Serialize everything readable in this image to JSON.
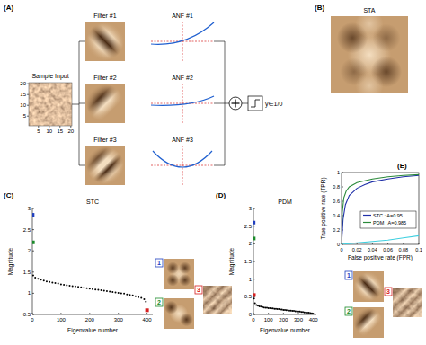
{
  "panels": {
    "A": {
      "label": "(A)",
      "sample_input": {
        "title": "Sample Input",
        "xlim": [
          0.5,
          20.5
        ],
        "ylim": [
          0.5,
          20.5
        ],
        "xticks": [
          5,
          10,
          15,
          20
        ],
        "yticks": [
          5,
          10,
          15,
          20
        ]
      },
      "filters": [
        "Filter #1",
        "Filter #2",
        "Filter #3"
      ],
      "nonlinearities": [
        "ANF #1",
        "ANF #2",
        "ANF #3"
      ],
      "output": "y∈1/0"
    },
    "B": {
      "label": "(B)",
      "title": "STA"
    },
    "C": {
      "label": "(C)",
      "thumbnails": [
        {
          "number": "1",
          "color": "#1f3fbf"
        },
        {
          "number": "2",
          "color": "#1a8a2a"
        },
        {
          "number": "3",
          "color": "#d62020"
        }
      ]
    },
    "D": {
      "label": "(D)",
      "thumbnails": [
        {
          "number": "1",
          "color": "#1f3fbf"
        },
        {
          "number": "2",
          "color": "#1a8a2a"
        },
        {
          "number": "3",
          "color": "#d62020"
        }
      ]
    },
    "E": {
      "label": "(E)"
    }
  },
  "chart_data": [
    {
      "type": "scatter",
      "title": "STC",
      "x_label": "Eigenvalue number",
      "y_label": "Magnitude",
      "xlim": [
        0,
        420
      ],
      "xticks": [
        0,
        100,
        200,
        300,
        400
      ],
      "ylim": [
        0.5,
        3
      ],
      "yticks": [
        0.5,
        1,
        1.5,
        2,
        2.5,
        3
      ],
      "series": [
        {
          "color": "#000000",
          "marker": "dot",
          "x": [
            3,
            10,
            20,
            30,
            40,
            50,
            60,
            70,
            80,
            90,
            100,
            110,
            120,
            130,
            140,
            150,
            160,
            170,
            180,
            190,
            200,
            210,
            220,
            230,
            240,
            250,
            260,
            270,
            280,
            290,
            300,
            310,
            320,
            330,
            340,
            350,
            360,
            370,
            380,
            390,
            396
          ],
          "values": [
            1.42,
            1.37,
            1.34,
            1.32,
            1.3,
            1.28,
            1.27,
            1.25,
            1.24,
            1.23,
            1.21,
            1.2,
            1.19,
            1.18,
            1.17,
            1.16,
            1.15,
            1.14,
            1.13,
            1.12,
            1.11,
            1.1,
            1.09,
            1.08,
            1.07,
            1.06,
            1.05,
            1.04,
            1.03,
            1.02,
            1.01,
            1.0,
            0.99,
            0.97,
            0.96,
            0.95,
            0.93,
            0.91,
            0.89,
            0.86,
            0.8
          ]
        },
        {
          "color": "#1f3fbf",
          "marker": "square",
          "x": [
            1
          ],
          "values": [
            2.85
          ]
        },
        {
          "color": "#1a8a2a",
          "marker": "square",
          "x": [
            2
          ],
          "values": [
            2.2
          ]
        },
        {
          "color": "#d62020",
          "marker": "square",
          "x": [
            400
          ],
          "values": [
            0.6
          ]
        }
      ]
    },
    {
      "type": "scatter",
      "title": "PDM",
      "x_label": "Eigenvalue number",
      "y_label": "Magnitude",
      "xlim": [
        0,
        420
      ],
      "xticks": [
        0,
        100,
        200,
        300,
        400
      ],
      "ylim": [
        0,
        3
      ],
      "yticks": [
        0,
        0.5,
        1,
        1.5,
        2,
        2.5,
        3
      ],
      "series": [
        {
          "color": "#000000",
          "marker": "dot",
          "x": [
            4,
            10,
            20,
            30,
            40,
            50,
            60,
            70,
            80,
            90,
            100,
            110,
            120,
            130,
            140,
            150,
            160,
            170,
            180,
            190,
            200,
            210,
            220,
            230,
            240,
            250,
            260,
            270,
            280,
            290,
            300,
            310,
            320,
            330,
            340,
            350,
            360,
            370,
            380,
            390,
            398
          ],
          "values": [
            0.45,
            0.32,
            0.27,
            0.25,
            0.23,
            0.22,
            0.21,
            0.2,
            0.19,
            0.19,
            0.18,
            0.18,
            0.17,
            0.17,
            0.16,
            0.16,
            0.15,
            0.15,
            0.14,
            0.14,
            0.13,
            0.13,
            0.12,
            0.12,
            0.11,
            0.11,
            0.1,
            0.1,
            0.09,
            0.09,
            0.08,
            0.08,
            0.07,
            0.07,
            0.06,
            0.06,
            0.05,
            0.05,
            0.04,
            0.03,
            0.02
          ]
        },
        {
          "color": "#1f3fbf",
          "marker": "square",
          "x": [
            1
          ],
          "values": [
            2.6
          ]
        },
        {
          "color": "#1a8a2a",
          "marker": "square",
          "x": [
            2
          ],
          "values": [
            2.15
          ]
        },
        {
          "color": "#d62020",
          "marker": "square",
          "x": [
            3
          ],
          "values": [
            0.55
          ]
        }
      ]
    },
    {
      "type": "line",
      "x_label": "False positive rate (FPR)",
      "y_label": "True positive rate (TPR)",
      "xlim": [
        0,
        0.1
      ],
      "xticks": [
        0,
        0.02,
        0.04,
        0.06,
        0.08,
        0.1
      ],
      "ylim": [
        0,
        1
      ],
      "yticks": [
        0,
        0.2,
        0.4,
        0.6,
        0.8,
        1
      ],
      "legend": "lower right",
      "series": [
        {
          "name": "STC : A=0.95",
          "color": "#1f2fa8",
          "line_style": "solid",
          "x": [
            0,
            0.002,
            0.005,
            0.01,
            0.02,
            0.03,
            0.04,
            0.06,
            0.08,
            0.1
          ],
          "values": [
            0,
            0.35,
            0.55,
            0.68,
            0.78,
            0.83,
            0.87,
            0.91,
            0.94,
            0.96
          ]
        },
        {
          "name": "PDM : A=0.985",
          "color": "#2a8a3a",
          "line_style": "solid",
          "x": [
            0,
            0.001,
            0.003,
            0.006,
            0.01,
            0.02,
            0.04,
            0.06,
            0.08,
            0.1
          ],
          "values": [
            0,
            0.45,
            0.65,
            0.74,
            0.8,
            0.86,
            0.91,
            0.94,
            0.96,
            0.97
          ]
        },
        {
          "color": "#40d0e0",
          "line_style": "solid",
          "x": [
            0,
            0.02,
            0.04,
            0.06,
            0.08,
            0.1
          ],
          "values": [
            0,
            0.02,
            0.04,
            0.06,
            0.09,
            0.12
          ]
        }
      ]
    }
  ]
}
